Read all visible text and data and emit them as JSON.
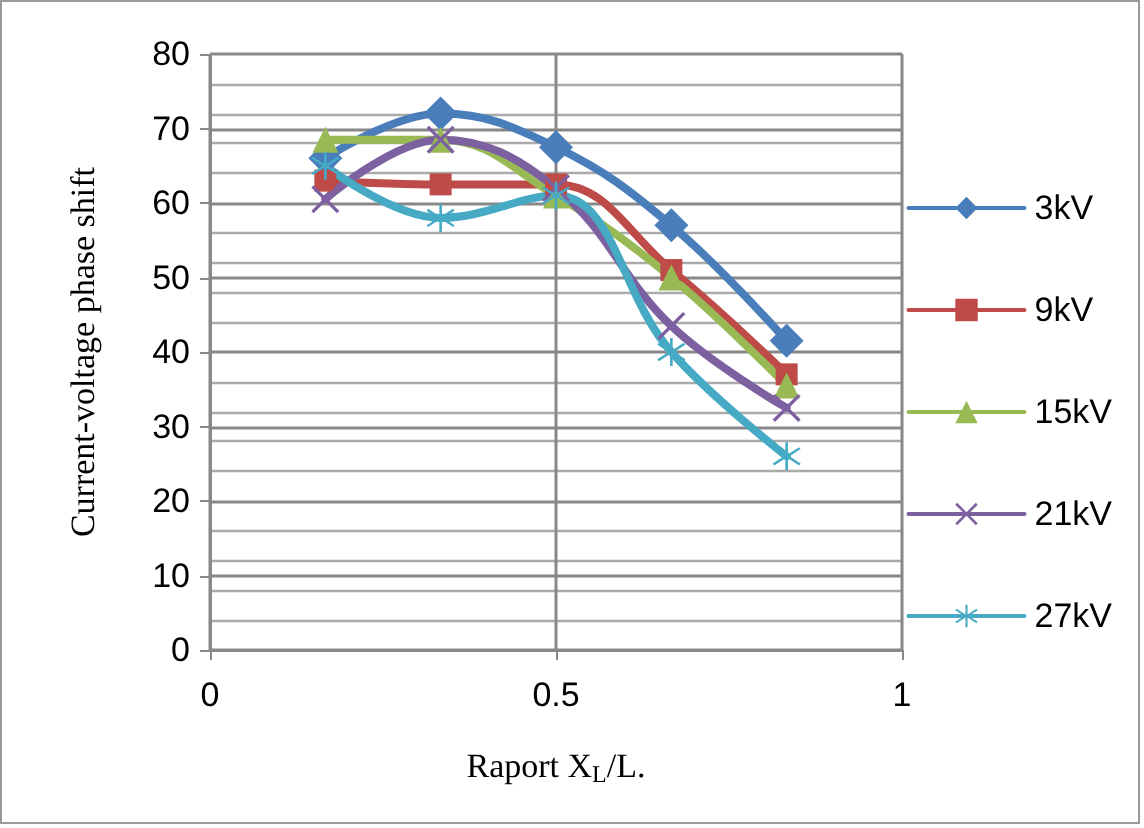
{
  "chart_data": {
    "type": "line",
    "xlabel": "Raport X$_{L}$/L.",
    "ylabel": "Current-voltage phase shift",
    "x": [
      0.1667,
      0.3333,
      0.5,
      0.6667,
      0.8333
    ],
    "series": [
      {
        "name": "3kV",
        "color": "#4a7ebb",
        "marker": "diamond",
        "values": [
          66,
          72,
          67.5,
          57,
          41.5
        ]
      },
      {
        "name": "9kV",
        "color": "#be4b48",
        "marker": "square",
        "values": [
          63,
          62.5,
          62.5,
          51,
          37
        ]
      },
      {
        "name": "15kV",
        "color": "#98b954",
        "marker": "triangle",
        "values": [
          68.5,
          68.5,
          61,
          50,
          35.5
        ]
      },
      {
        "name": "21kV",
        "color": "#7d60a0",
        "marker": "cross",
        "values": [
          60.5,
          68.5,
          62,
          43.5,
          32.5
        ]
      },
      {
        "name": "27kV",
        "color": "#46aac5",
        "marker": "star",
        "values": [
          65,
          58,
          61,
          40,
          26
        ]
      }
    ],
    "xlim": [
      0,
      1
    ],
    "xticks": [
      0,
      0.5,
      1
    ],
    "ylim": [
      0,
      80
    ],
    "yticks": [
      0,
      10,
      20,
      30,
      40,
      50,
      60,
      70,
      80
    ],
    "grid": true,
    "legend": "right",
    "line_style": "solid"
  }
}
